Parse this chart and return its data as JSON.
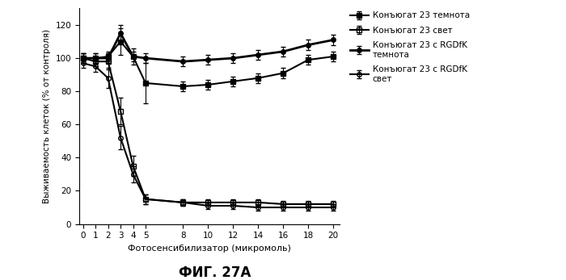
{
  "title": "ФИГ. 27А",
  "xlabel": "Фотосенсибилизатор (микромоль)",
  "ylabel": "Выживаемость клеток (% от контроля)",
  "xlim": [
    -0.3,
    20.5
  ],
  "ylim": [
    0,
    130
  ],
  "yticks": [
    0,
    20,
    40,
    60,
    80,
    100,
    120
  ],
  "xticks": [
    0,
    1,
    2,
    3,
    4,
    5,
    8,
    10,
    12,
    14,
    16,
    18,
    20
  ],
  "series": [
    {
      "label": "Конъюгат 23 темнота",
      "x": [
        0,
        1,
        2,
        3,
        4,
        5,
        8,
        10,
        12,
        14,
        16,
        18,
        20
      ],
      "y": [
        100,
        100,
        101,
        110,
        101,
        85,
        83,
        84,
        86,
        88,
        91,
        99,
        101
      ],
      "yerr": [
        3,
        3,
        3,
        8,
        5,
        12,
        3,
        3,
        3,
        3,
        3,
        3,
        3
      ],
      "marker": "s",
      "fillstyle": "full",
      "color": "#000000",
      "linestyle": "-",
      "linewidth": 1.5,
      "markersize": 4
    },
    {
      "label": "Конъюгат 23 свет",
      "x": [
        0,
        1,
        2,
        3,
        4,
        5,
        8,
        10,
        12,
        14,
        16,
        18,
        20
      ],
      "y": [
        100,
        98,
        98,
        68,
        35,
        15,
        13,
        13,
        13,
        13,
        12,
        12,
        12
      ],
      "yerr": [
        3,
        3,
        5,
        8,
        6,
        3,
        2,
        2,
        2,
        2,
        2,
        2,
        2
      ],
      "marker": "s",
      "fillstyle": "none",
      "color": "#000000",
      "linestyle": "-",
      "linewidth": 1.5,
      "markersize": 4
    },
    {
      "label": "Конъюгат 23 с RGDfK\nтемнота",
      "x": [
        0,
        1,
        2,
        3,
        4,
        5,
        8,
        10,
        12,
        14,
        16,
        18,
        20
      ],
      "y": [
        100,
        100,
        100,
        115,
        101,
        100,
        98,
        99,
        100,
        102,
        104,
        108,
        111
      ],
      "yerr": [
        3,
        3,
        3,
        5,
        3,
        3,
        3,
        3,
        3,
        3,
        3,
        3,
        3
      ],
      "marker": "o",
      "fillstyle": "full",
      "color": "#000000",
      "linestyle": "-",
      "linewidth": 2.0,
      "markersize": 4
    },
    {
      "label": "Конъюгат 23 с RGDfK\nсвет",
      "x": [
        0,
        1,
        2,
        3,
        4,
        5,
        8,
        10,
        12,
        14,
        16,
        18,
        20
      ],
      "y": [
        97,
        95,
        88,
        52,
        30,
        15,
        13,
        11,
        11,
        10,
        10,
        10,
        10
      ],
      "yerr": [
        3,
        3,
        6,
        7,
        5,
        3,
        2,
        2,
        2,
        2,
        2,
        2,
        2
      ],
      "marker": "o",
      "fillstyle": "none",
      "color": "#000000",
      "linestyle": "-",
      "linewidth": 1.5,
      "markersize": 4
    }
  ],
  "background_color": "#ffffff",
  "legend_labels": [
    "Конъюгат 23 темнота",
    "Конъюгат 23 свет",
    "Конъюгат 23 с RGDfK\nтемнота",
    "Конъюгат 23 с RGDfK\nсвет"
  ]
}
